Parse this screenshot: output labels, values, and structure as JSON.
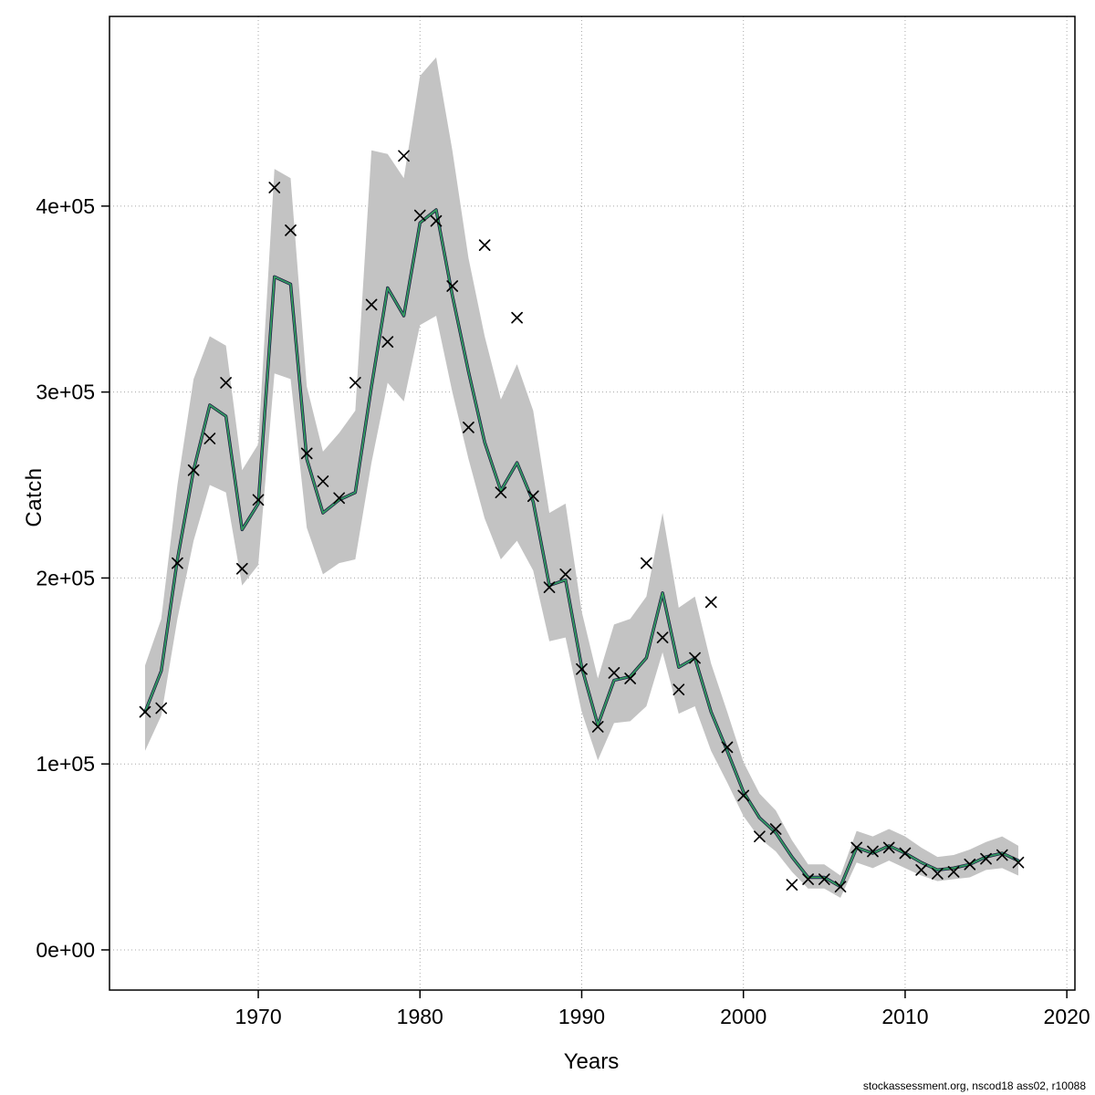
{
  "footer": "stockassessment.org, nscod18 ass02, r10088",
  "chart_data": {
    "type": "line",
    "title": "",
    "xlabel": "Years",
    "ylabel": "Catch",
    "x": [
      1963,
      1964,
      1965,
      1966,
      1967,
      1968,
      1969,
      1970,
      1971,
      1972,
      1973,
      1974,
      1975,
      1976,
      1977,
      1978,
      1979,
      1980,
      1981,
      1982,
      1983,
      1984,
      1985,
      1986,
      1987,
      1988,
      1989,
      1990,
      1991,
      1992,
      1993,
      1994,
      1995,
      1996,
      1997,
      1998,
      1999,
      2000,
      2001,
      2002,
      2003,
      2004,
      2005,
      2006,
      2007,
      2008,
      2009,
      2010,
      2011,
      2012,
      2013,
      2014,
      2015,
      2016,
      2017
    ],
    "series": [
      {
        "name": "observed-catch",
        "style": "x-markers",
        "color": "#000000",
        "values": [
          128000,
          130000,
          208000,
          258000,
          275000,
          305000,
          205000,
          242000,
          410000,
          387000,
          267000,
          252000,
          243000,
          305000,
          347000,
          327000,
          427000,
          395000,
          392000,
          357000,
          281000,
          379000,
          246000,
          340000,
          244000,
          195000,
          202000,
          151000,
          120000,
          149000,
          146000,
          208000,
          168000,
          140000,
          157000,
          187000,
          109000,
          83000,
          61000,
          65000,
          35000,
          38000,
          38000,
          34000,
          55000,
          53000,
          55000,
          52000,
          43000,
          41000,
          42000,
          46000,
          49000,
          51000,
          47000
        ]
      },
      {
        "name": "model-fit-overlaid-runs",
        "style": "line",
        "colors": [
          "#1a1a1a",
          "#2c5faa",
          "#36a649"
        ],
        "values": [
          128000,
          150000,
          210000,
          258000,
          293000,
          287000,
          226000,
          240000,
          362000,
          358000,
          264000,
          235000,
          242000,
          246000,
          303000,
          356000,
          341000,
          391000,
          398000,
          352000,
          311000,
          273000,
          247000,
          262000,
          241000,
          196000,
          199000,
          152000,
          121000,
          145000,
          147000,
          157000,
          192000,
          152000,
          157000,
          128000,
          107000,
          85000,
          71000,
          63000,
          50000,
          39000,
          39000,
          34000,
          55000,
          52000,
          56000,
          52000,
          47000,
          43000,
          44000,
          46000,
          50000,
          52000,
          48000
        ]
      }
    ],
    "confidence_band": {
      "color": "#c3c3c3",
      "lower": [
        107000,
        126000,
        178000,
        220000,
        250000,
        246000,
        196000,
        207000,
        310000,
        307000,
        227000,
        202000,
        208000,
        210000,
        262000,
        305000,
        295000,
        336000,
        341000,
        300000,
        264000,
        232000,
        210000,
        220000,
        204000,
        166000,
        168000,
        128000,
        102000,
        122000,
        123000,
        131000,
        160000,
        127000,
        131000,
        107000,
        90000,
        72000,
        60000,
        53000,
        42000,
        33000,
        33000,
        28000,
        47000,
        44000,
        48000,
        44000,
        40000,
        37000,
        38000,
        39000,
        43000,
        44000,
        40000
      ],
      "upper": [
        153000,
        178000,
        250000,
        307000,
        330000,
        325000,
        258000,
        272000,
        420000,
        415000,
        303000,
        268000,
        278000,
        290000,
        430000,
        428000,
        415000,
        470000,
        480000,
        430000,
        372000,
        330000,
        296000,
        315000,
        290000,
        235000,
        240000,
        182000,
        146000,
        175000,
        178000,
        190000,
        235000,
        184000,
        190000,
        154000,
        128000,
        101000,
        84000,
        75000,
        59000,
        46000,
        46000,
        40000,
        64000,
        61000,
        65000,
        61000,
        55000,
        50000,
        51000,
        54000,
        58000,
        61000,
        56000
      ]
    },
    "xticks": [
      1970,
      1980,
      1990,
      2000,
      2010,
      2020
    ],
    "xtick_labels": [
      "1970",
      "1980",
      "1990",
      "2000",
      "2010",
      "2020"
    ],
    "yticks": [
      0,
      100000,
      200000,
      300000,
      400000
    ],
    "ytick_labels": [
      "0e+00",
      "1e+05",
      "2e+05",
      "3e+05",
      "4e+05"
    ],
    "xlim": [
      1960.8,
      2020.5
    ],
    "ylim": [
      -21600,
      502000
    ],
    "grid": true,
    "grid_color": "#a8a8a8",
    "legend": "none"
  }
}
